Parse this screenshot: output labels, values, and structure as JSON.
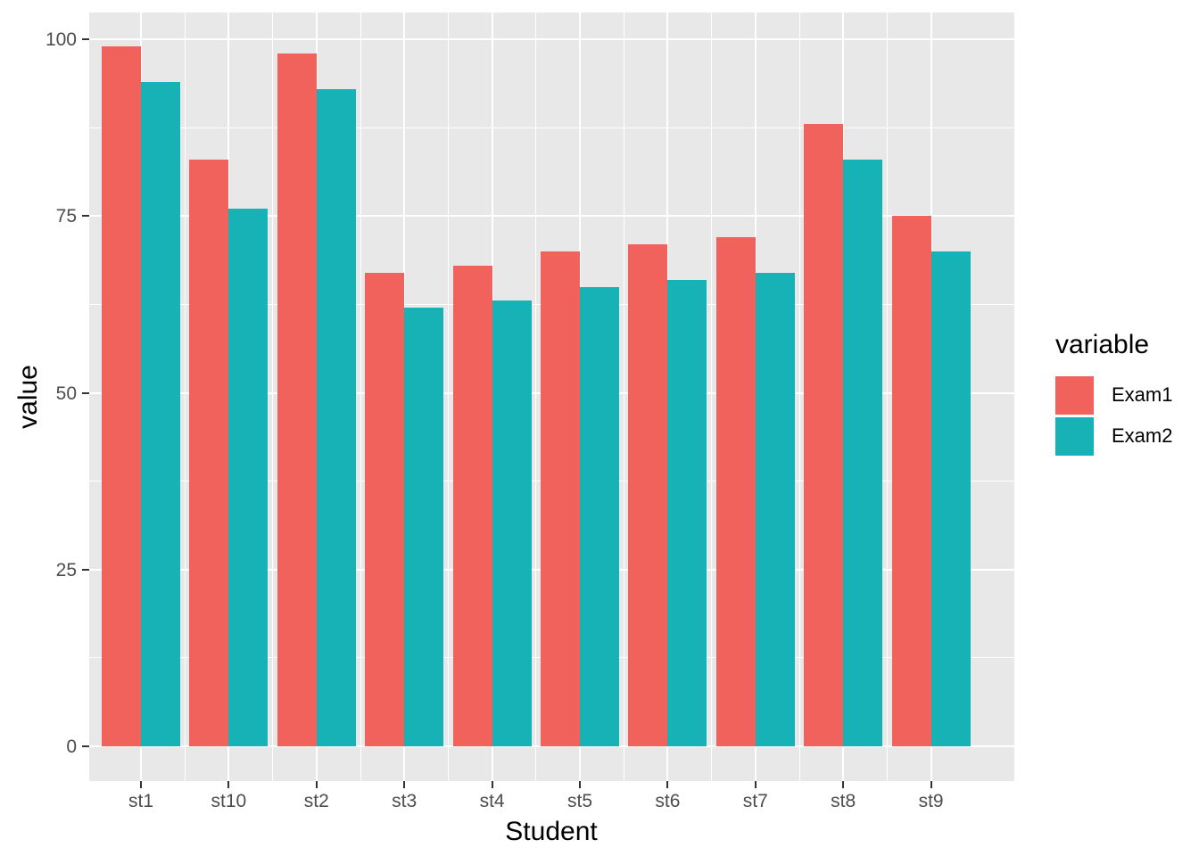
{
  "figure": {
    "background": "#FFFFFF",
    "panel_background": "#E8E8E8",
    "grid_color": "#FFFFFF",
    "tick_label_color": "#4D4D4D",
    "axis_title_color": "#000000"
  },
  "chart_data": {
    "type": "bar",
    "subtype": "grouped-dodged",
    "title": "",
    "xlabel": "Student",
    "ylabel": "value",
    "categories": [
      "st1",
      "st10",
      "st2",
      "st3",
      "st4",
      "st5",
      "st6",
      "st7",
      "st8",
      "st9"
    ],
    "series": [
      {
        "name": "Exam1",
        "color": "#F2625D",
        "values": [
          99,
          83,
          98,
          67,
          68,
          70,
          71,
          72,
          88,
          75
        ]
      },
      {
        "name": "Exam2",
        "color": "#17B2B5",
        "values": [
          94,
          76,
          93,
          62,
          63,
          65,
          66,
          67,
          83,
          70
        ]
      }
    ],
    "ylim": [
      0,
      100
    ],
    "yticks": [
      0,
      25,
      50,
      75,
      100
    ],
    "grid": true,
    "minor_grid": true,
    "legend": {
      "title": "variable",
      "position": "right"
    }
  }
}
